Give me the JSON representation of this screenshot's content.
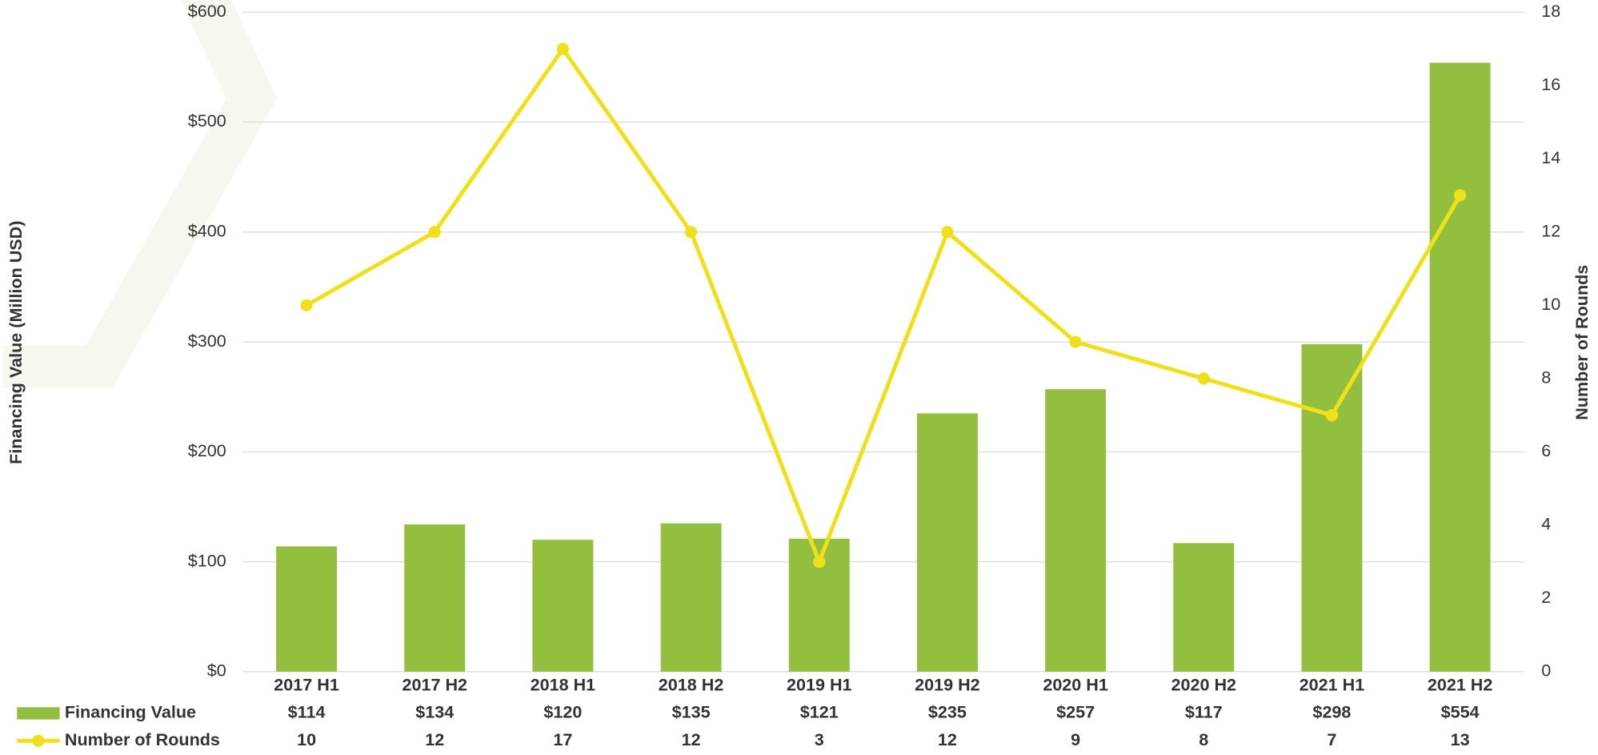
{
  "chart_data": {
    "type": "combo",
    "categories": [
      "2017 H1",
      "2017 H2",
      "2018 H1",
      "2018 H2",
      "2019 H1",
      "2019 H2",
      "2020 H1",
      "2020 H2",
      "2021 H1",
      "2021 H2"
    ],
    "series": [
      {
        "name": "Financing Value",
        "type": "bar",
        "color": "#93bf3e",
        "axis": "y",
        "values": [
          114,
          134,
          120,
          135,
          121,
          235,
          257,
          117,
          298,
          554
        ],
        "value_labels": [
          "$114",
          "$134",
          "$120",
          "$135",
          "$121",
          "$235",
          "$257",
          "$117",
          "$298",
          "$554"
        ]
      },
      {
        "name": "Number of Rounds",
        "type": "line",
        "color": "#f0e01a",
        "axis": "y2",
        "values": [
          10,
          12,
          17,
          12,
          3,
          12,
          9,
          8,
          7,
          13
        ]
      }
    ],
    "ylabel": "Financing Value (Million USD)",
    "y2label": "Number of Rounds",
    "ylim": [
      0,
      600
    ],
    "yticks": [
      {
        "value": 0,
        "label": "$0"
      },
      {
        "value": 100,
        "label": "$100"
      },
      {
        "value": 200,
        "label": "$200"
      },
      {
        "value": 300,
        "label": "$300"
      },
      {
        "value": 400,
        "label": "$400"
      },
      {
        "value": 500,
        "label": "$500"
      },
      {
        "value": 600,
        "label": "$600"
      }
    ],
    "y2lim": [
      0,
      18
    ],
    "y2ticks": [
      0,
      2,
      4,
      6,
      8,
      10,
      12,
      14,
      16,
      18
    ],
    "grid": true
  }
}
